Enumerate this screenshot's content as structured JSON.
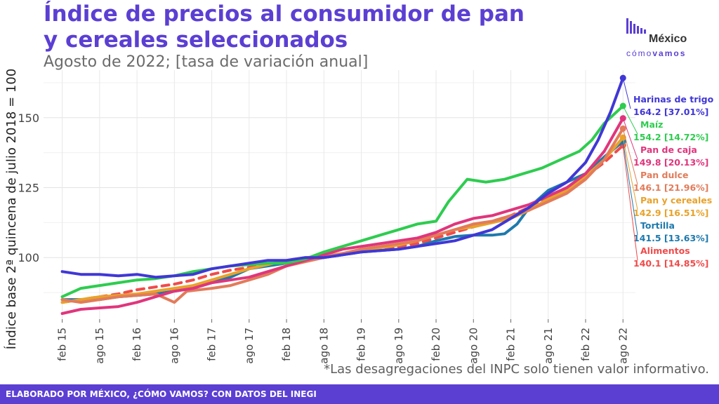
{
  "header": {
    "title": "Índice de precios al consumidor de pan y cereales seleccionados",
    "subtitle": "Agosto de 2022; [tasa de variación anual]"
  },
  "logo": {
    "line1": "México",
    "line2a": "cómo",
    "line2b": "vamos"
  },
  "footnote": "*Las desagregaciones del INPC solo tienen valor informativo.",
  "footer": "ELABORADO POR MÉXICO, ¿CÓMO VAMOS? CON DATOS DEL INEGI",
  "colors": {
    "brand": "#5b3fd3"
  },
  "chart_data": {
    "type": "line",
    "ylabel": "Índice base 2ª quincena de julio 2018 = 100",
    "ylim": [
      78,
      167
    ],
    "yticks": [
      100,
      125,
      150
    ],
    "x_labels": [
      "feb 15",
      "ago 15",
      "feb 16",
      "ago 16",
      "feb 17",
      "ago 17",
      "feb 18",
      "ago 18",
      "feb 19",
      "ago 19",
      "feb 20",
      "ago 20",
      "feb 21",
      "ago 21",
      "feb 22",
      "ago 22"
    ],
    "x_label_index": [
      0,
      6,
      12,
      18,
      24,
      30,
      36,
      42,
      48,
      54,
      60,
      66,
      72,
      78,
      84,
      90
    ],
    "grid": true,
    "legend_placement": "right end of lines",
    "series": [
      {
        "name": "Harinas de trigo",
        "label": "164.2 [37.01%]",
        "color": "#4037d6",
        "dashed": false,
        "points": [
          [
            0,
            95
          ],
          [
            3,
            94
          ],
          [
            6,
            94
          ],
          [
            9,
            93.5
          ],
          [
            12,
            94
          ],
          [
            15,
            93
          ],
          [
            18,
            93.5
          ],
          [
            21,
            94
          ],
          [
            24,
            96
          ],
          [
            27,
            97
          ],
          [
            30,
            98
          ],
          [
            33,
            99
          ],
          [
            36,
            99
          ],
          [
            39,
            100
          ],
          [
            42,
            100
          ],
          [
            45,
            101
          ],
          [
            48,
            102
          ],
          [
            51,
            102.5
          ],
          [
            54,
            103
          ],
          [
            57,
            104
          ],
          [
            60,
            105
          ],
          [
            63,
            106
          ],
          [
            66,
            108
          ],
          [
            69,
            110
          ],
          [
            72,
            114
          ],
          [
            75,
            118
          ],
          [
            78,
            123
          ],
          [
            81,
            127
          ],
          [
            84,
            134
          ],
          [
            86,
            142
          ],
          [
            88,
            152
          ],
          [
            90,
            164.2
          ]
        ]
      },
      {
        "name": "Maíz",
        "label": "154.2 [14.72%]",
        "color": "#2ecc4f",
        "dashed": false,
        "points": [
          [
            0,
            86
          ],
          [
            3,
            89
          ],
          [
            6,
            90
          ],
          [
            9,
            91
          ],
          [
            12,
            92
          ],
          [
            15,
            92.5
          ],
          [
            18,
            93.5
          ],
          [
            21,
            95
          ],
          [
            24,
            96
          ],
          [
            27,
            97
          ],
          [
            30,
            97.5
          ],
          [
            33,
            98
          ],
          [
            36,
            98
          ],
          [
            39,
            99.5
          ],
          [
            42,
            102
          ],
          [
            45,
            104
          ],
          [
            48,
            106
          ],
          [
            51,
            108
          ],
          [
            54,
            110
          ],
          [
            57,
            112
          ],
          [
            60,
            113
          ],
          [
            62,
            120
          ],
          [
            65,
            128
          ],
          [
            68,
            127
          ],
          [
            71,
            128
          ],
          [
            74,
            130
          ],
          [
            77,
            132
          ],
          [
            80,
            135
          ],
          [
            83,
            138
          ],
          [
            85,
            142
          ],
          [
            87,
            148
          ],
          [
            90,
            154.2
          ]
        ]
      },
      {
        "name": "Pan de caja",
        "label": "149.8 [20.13%]",
        "color": "#e0357c",
        "dashed": false,
        "points": [
          [
            0,
            80
          ],
          [
            3,
            81.5
          ],
          [
            6,
            82
          ],
          [
            9,
            82.5
          ],
          [
            12,
            84
          ],
          [
            15,
            86
          ],
          [
            18,
            88
          ],
          [
            21,
            89
          ],
          [
            24,
            91
          ],
          [
            27,
            92
          ],
          [
            30,
            93
          ],
          [
            33,
            95
          ],
          [
            36,
            97
          ],
          [
            39,
            99
          ],
          [
            42,
            101
          ],
          [
            45,
            103
          ],
          [
            48,
            104
          ],
          [
            51,
            105
          ],
          [
            54,
            106
          ],
          [
            57,
            107
          ],
          [
            60,
            109
          ],
          [
            63,
            112
          ],
          [
            66,
            114
          ],
          [
            69,
            115
          ],
          [
            72,
            117
          ],
          [
            75,
            119
          ],
          [
            78,
            122
          ],
          [
            81,
            125
          ],
          [
            84,
            130
          ],
          [
            87,
            138
          ],
          [
            90,
            149.8
          ]
        ]
      },
      {
        "name": "Pan dulce",
        "label": "146.1 [21.96%]",
        "color": "#e27b5a",
        "dashed": false,
        "points": [
          [
            0,
            85
          ],
          [
            3,
            84
          ],
          [
            6,
            85
          ],
          [
            9,
            86
          ],
          [
            12,
            86.5
          ],
          [
            15,
            87
          ],
          [
            18,
            84
          ],
          [
            20,
            88
          ],
          [
            24,
            89
          ],
          [
            27,
            90
          ],
          [
            30,
            92
          ],
          [
            33,
            94
          ],
          [
            36,
            97
          ],
          [
            39,
            98.5
          ],
          [
            42,
            100
          ],
          [
            45,
            101.5
          ],
          [
            48,
            103
          ],
          [
            51,
            104
          ],
          [
            54,
            105
          ],
          [
            57,
            106
          ],
          [
            60,
            108
          ],
          [
            63,
            110
          ],
          [
            66,
            112
          ],
          [
            69,
            113
          ],
          [
            72,
            115
          ],
          [
            75,
            117
          ],
          [
            78,
            120
          ],
          [
            81,
            123
          ],
          [
            84,
            128
          ],
          [
            87,
            135
          ],
          [
            90,
            146.1
          ]
        ]
      },
      {
        "name": "Pan y cereales",
        "label": "142.9 [16.51%]",
        "color": "#e8a22a",
        "dashed": false,
        "points": [
          [
            0,
            84
          ],
          [
            3,
            85
          ],
          [
            6,
            86
          ],
          [
            9,
            86.5
          ],
          [
            12,
            87
          ],
          [
            15,
            88
          ],
          [
            18,
            89
          ],
          [
            21,
            90
          ],
          [
            24,
            92
          ],
          [
            27,
            94
          ],
          [
            30,
            96
          ],
          [
            33,
            97.5
          ],
          [
            36,
            99
          ],
          [
            39,
            100
          ],
          [
            42,
            100.5
          ],
          [
            45,
            101.5
          ],
          [
            48,
            102.5
          ],
          [
            51,
            103.5
          ],
          [
            54,
            104.5
          ],
          [
            57,
            106
          ],
          [
            60,
            108
          ],
          [
            63,
            110
          ],
          [
            66,
            111
          ],
          [
            69,
            112.5
          ],
          [
            72,
            114
          ],
          [
            75,
            117
          ],
          [
            78,
            121
          ],
          [
            81,
            124
          ],
          [
            84,
            129
          ],
          [
            87,
            135
          ],
          [
            90,
            142.9
          ]
        ]
      },
      {
        "name": "Tortilla",
        "label": "141.5 [13.63%]",
        "color": "#1d79ad",
        "dashed": false,
        "points": [
          [
            0,
            85
          ],
          [
            3,
            85
          ],
          [
            6,
            85
          ],
          [
            9,
            86
          ],
          [
            12,
            86.5
          ],
          [
            15,
            87
          ],
          [
            18,
            88
          ],
          [
            21,
            89
          ],
          [
            24,
            91
          ],
          [
            27,
            93
          ],
          [
            30,
            96
          ],
          [
            33,
            97
          ],
          [
            36,
            98
          ],
          [
            39,
            99
          ],
          [
            42,
            100
          ],
          [
            45,
            101
          ],
          [
            48,
            102
          ],
          [
            51,
            102.5
          ],
          [
            54,
            103
          ],
          [
            57,
            104
          ],
          [
            60,
            106
          ],
          [
            63,
            107.5
          ],
          [
            66,
            108
          ],
          [
            69,
            108
          ],
          [
            71,
            108.5
          ],
          [
            73,
            112
          ],
          [
            75,
            118
          ],
          [
            78,
            124
          ],
          [
            81,
            127
          ],
          [
            84,
            130
          ],
          [
            87,
            136
          ],
          [
            90,
            141.5
          ]
        ]
      },
      {
        "name": "Alimentos",
        "label": "140.1 [14.85%]",
        "color": "#f14a4a",
        "dashed": true,
        "points": [
          [
            0,
            84
          ],
          [
            3,
            85
          ],
          [
            6,
            86
          ],
          [
            9,
            87
          ],
          [
            12,
            88.5
          ],
          [
            15,
            89.5
          ],
          [
            18,
            90.5
          ],
          [
            21,
            92
          ],
          [
            24,
            94
          ],
          [
            27,
            95.5
          ],
          [
            30,
            96.5
          ],
          [
            33,
            97.5
          ],
          [
            36,
            98.5
          ],
          [
            39,
            99.5
          ],
          [
            42,
            100
          ],
          [
            45,
            101
          ],
          [
            48,
            102
          ],
          [
            51,
            103
          ],
          [
            54,
            104
          ],
          [
            57,
            105
          ],
          [
            60,
            107
          ],
          [
            63,
            109
          ],
          [
            66,
            111
          ],
          [
            69,
            113
          ],
          [
            72,
            115
          ],
          [
            75,
            118
          ],
          [
            78,
            122
          ],
          [
            81,
            125
          ],
          [
            84,
            129
          ],
          [
            87,
            134
          ],
          [
            90,
            140.1
          ]
        ]
      }
    ]
  }
}
